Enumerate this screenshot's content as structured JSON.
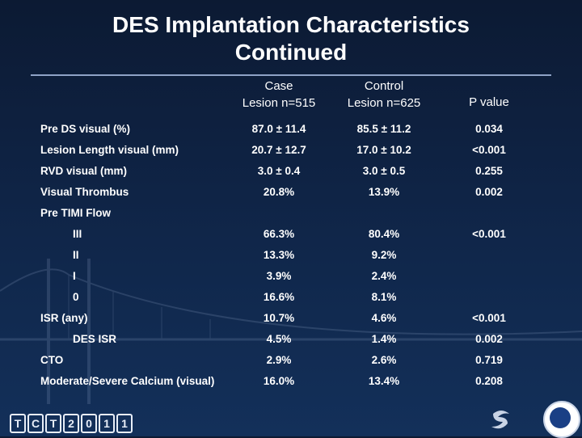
{
  "title": {
    "line1": "DES Implantation Characteristics",
    "line2": "Continued"
  },
  "headers": {
    "case_line1": "Case",
    "case_line2": "Lesion n=515",
    "control_line1": "Control",
    "control_line2": "Lesion n=625",
    "pvalue": "P value"
  },
  "rows": [
    {
      "label": "Pre DS visual (%)",
      "case": "87.0 ± 11.4",
      "control": "85.5 ± 11.2",
      "p": "0.034"
    },
    {
      "label": "Lesion Length visual (mm)",
      "case": "20.7 ± 12.7",
      "control": "17.0 ± 10.2",
      "p": "<0.001"
    },
    {
      "label": "RVD visual (mm)",
      "case": "3.0 ± 0.4",
      "control": "3.0 ± 0.5",
      "p": "0.255"
    },
    {
      "label": "Visual Thrombus",
      "case": "20.8%",
      "control": "13.9%",
      "p": "0.002"
    },
    {
      "label": "Pre TIMI Flow",
      "case": "",
      "control": "",
      "p": ""
    },
    {
      "label": "III",
      "case": "66.3%",
      "control": "80.4%",
      "p": "<0.001"
    },
    {
      "label": "II",
      "case": "13.3%",
      "control": "9.2%",
      "p": ""
    },
    {
      "label": "I",
      "case": "3.9%",
      "control": "2.4%",
      "p": ""
    },
    {
      "label": "0",
      "case": "16.6%",
      "control": "8.1%",
      "p": ""
    },
    {
      "label": "ISR (any)",
      "case": "10.7%",
      "control": "4.6%",
      "p": "<0.001"
    },
    {
      "label": "DES ISR",
      "case": "4.5%",
      "control": "1.4%",
      "p": "0.002"
    },
    {
      "label": "CTO",
      "case": "2.9%",
      "control": "2.6%",
      "p": "0.719"
    },
    {
      "label": "Moderate/Severe Calcium (visual)",
      "case": "16.0%",
      "control": "13.4%",
      "p": "0.208"
    }
  ],
  "footer": {
    "tct_chars": [
      "T",
      "C",
      "T",
      "2",
      "0",
      "1",
      "1"
    ]
  },
  "colors": {
    "background_top": "#0c1a33",
    "background_bottom": "#13305a",
    "text": "#ffffff",
    "rule": "#8fa3c7"
  }
}
